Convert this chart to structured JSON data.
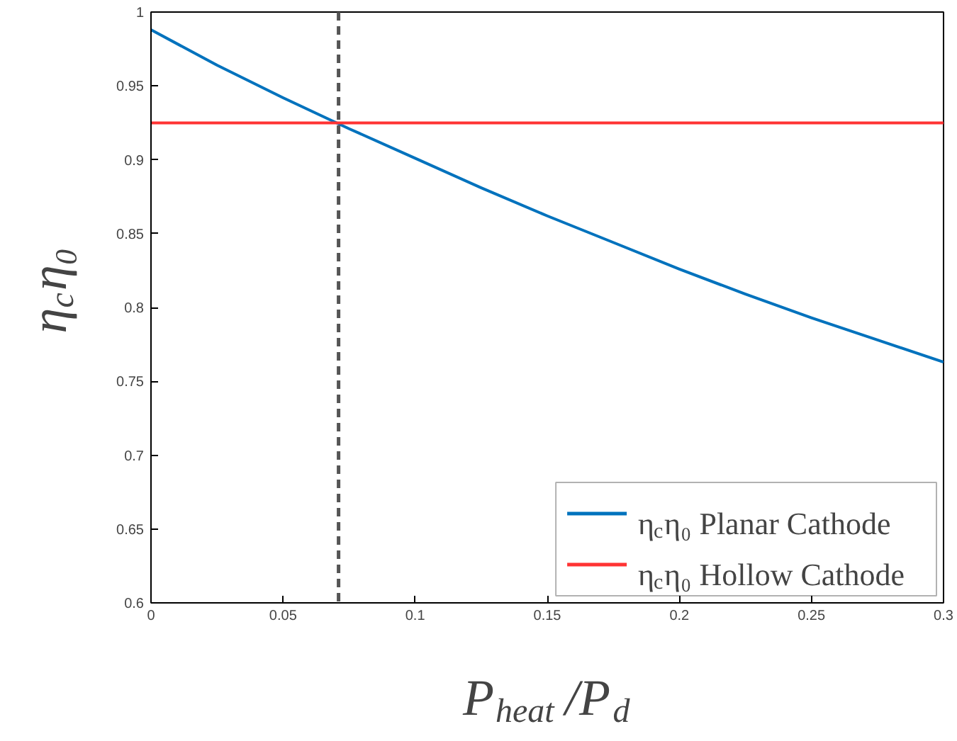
{
  "chart_data": {
    "type": "line",
    "xlabel": "P$_{heat}$/P$_{d}$",
    "ylabel": "η$_{c}$η₀",
    "xlim": [
      0,
      0.3
    ],
    "ylim": [
      0.6,
      1
    ],
    "xticks": [
      0,
      0.05,
      0.1,
      0.15,
      0.2,
      0.25,
      0.3
    ],
    "yticks": [
      0.6,
      0.65,
      0.7,
      0.75,
      0.8,
      0.85,
      0.9,
      0.95,
      1
    ],
    "series": [
      {
        "name": "η$_{c}$η₀ Planar Cathode",
        "color": "#0072bd",
        "x": [
          0,
          0.025,
          0.05,
          0.075,
          0.1,
          0.125,
          0.15,
          0.175,
          0.2,
          0.225,
          0.25,
          0.275,
          0.3
        ],
        "values": [
          0.988,
          0.964,
          0.942,
          0.921,
          0.901,
          0.881,
          0.862,
          0.844,
          0.826,
          0.809,
          0.793,
          0.778,
          0.763
        ]
      },
      {
        "name": "η$_{c}$η₀ Hollow Cathode",
        "color": "#ff3333",
        "x": [
          0,
          0.3
        ],
        "values": [
          0.925,
          0.925
        ]
      }
    ],
    "ref_lines": [
      {
        "axis": "x",
        "value": 0.071,
        "label": null,
        "color": "#555555",
        "line_style": "dashed"
      }
    ],
    "legend": "bottom right",
    "grid": false,
    "marker": "none",
    "line_style": "solid"
  }
}
